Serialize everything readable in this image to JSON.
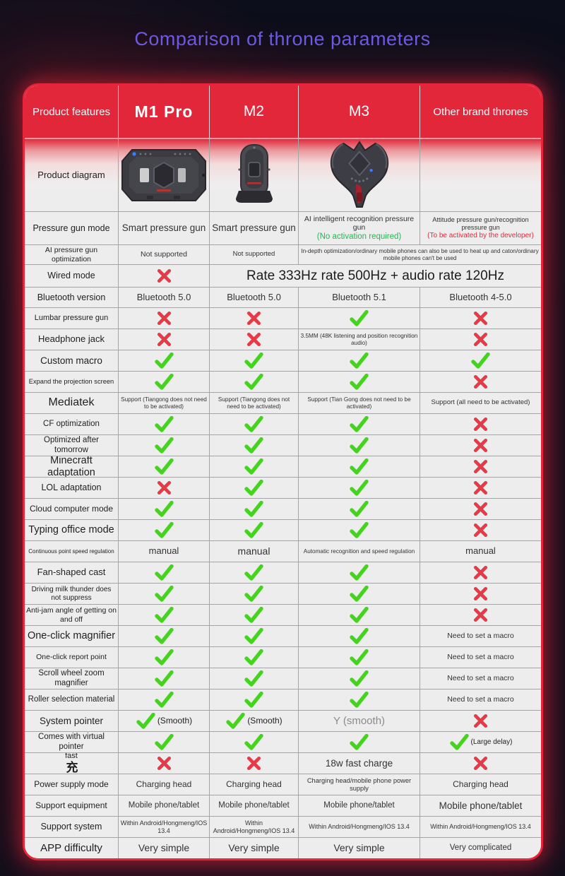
{
  "title": "Comparison of throne parameters",
  "colors": {
    "background": "#0c0e1b",
    "header_red": "#e3273a",
    "card_border_red": "#e6243a",
    "title_purple": "#6a5ce4",
    "check_green": "#45d41d",
    "cross_red": "#e73a46",
    "cell_bg": "#ededed",
    "ok_text_green": "#1fba50",
    "warn_text_red": "#e8283a"
  },
  "icons": {
    "check_icon": "green check mark",
    "cross_icon": "red cross mark",
    "device_images": [
      "m1-pro-device",
      "m2-device",
      "m3-device"
    ]
  },
  "table": {
    "headers": [
      "Product features",
      "M1 Pro",
      "M2",
      "M3",
      "Other brand thrones"
    ],
    "rows": [
      {
        "label": "Product diagram",
        "h": 102,
        "labelSize": 13,
        "diagram": true,
        "cells": [
          {
            "image": "m1-pro-device"
          },
          {
            "image": "m2-device"
          },
          {
            "image": "m3-device"
          },
          {}
        ]
      },
      {
        "label": "Pressure gun mode",
        "h": 47,
        "labelSize": 12.5,
        "cells": [
          {
            "text": "Smart pressure gun",
            "size": 13.5
          },
          {
            "text": "Smart pressure gun",
            "size": 13.5
          },
          {
            "text": "AI intelligent recognition pressure gun",
            "size": 10.5,
            "sub": "(No activation required)",
            "subColor": "#1fba50",
            "subSize": 11.5
          },
          {
            "text": "Attitude pressure gun/recognition pressure gun",
            "size": 9.3,
            "sub": "(To be activated by the developer)",
            "subColor": "#e8283a",
            "subSize": 10
          }
        ]
      },
      {
        "label": "AI pressure gun optimization",
        "h": 28,
        "labelSize": 10.5,
        "cells": [
          {
            "text": "Not supported",
            "size": 10.5
          },
          {
            "text": "Not supported",
            "size": 9.5
          },
          {
            "text": "In-depth optimization/ordinary mobile phones can also be used to heat up and caton/ordinary mobile phones can't be used",
            "colspan": 2,
            "size": 8.2
          }
        ]
      },
      {
        "label": "Wired mode",
        "h": 32,
        "labelSize": 12.5,
        "cells": [
          {
            "mark": "cross"
          },
          {
            "text": "Rate 333Hz rate 500Hz + audio rate 120Hz",
            "colspan": 3,
            "size": 19,
            "color": "#1c1c1c"
          }
        ]
      },
      {
        "label": "Bluetooth version",
        "h": 29,
        "labelSize": 12.5,
        "cells": [
          {
            "text": "Bluetooth 5.0",
            "size": 13
          },
          {
            "text": "Bluetooth 5.0",
            "size": 13
          },
          {
            "text": "Bluetooth 5.1",
            "size": 13
          },
          {
            "text": "Bluetooth 4-5.0",
            "size": 13
          }
        ]
      },
      {
        "label": "Lumbar pressure gun",
        "h": 30,
        "labelSize": 11,
        "cells": [
          {
            "mark": "cross"
          },
          {
            "mark": "cross"
          },
          {
            "mark": "check"
          },
          {
            "mark": "cross"
          }
        ]
      },
      {
        "label": "Headphone jack",
        "h": 30,
        "labelSize": 13,
        "cells": [
          {
            "mark": "cross"
          },
          {
            "mark": "cross"
          },
          {
            "text": "3.5MM (48K listening and position recognition audio)",
            "size": 8.2
          },
          {
            "mark": "cross"
          }
        ]
      },
      {
        "label": "Custom macro",
        "h": 30,
        "labelSize": 13.5,
        "cells": [
          {
            "mark": "check"
          },
          {
            "mark": "check"
          },
          {
            "mark": "check"
          },
          {
            "mark": "check"
          }
        ]
      },
      {
        "label": "Expand the projection screen",
        "h": 30,
        "labelSize": 9.3,
        "cells": [
          {
            "mark": "check"
          },
          {
            "mark": "check"
          },
          {
            "mark": "check"
          },
          {
            "mark": "cross"
          }
        ]
      },
      {
        "label": "Mediatek",
        "h": 30,
        "labelSize": 16,
        "cells": [
          {
            "text": "Support (Tiangong does not need to be activated)",
            "size": 8.2
          },
          {
            "text": "Support (Tiangong does not need to be activated)",
            "size": 8.2
          },
          {
            "text": "Support (Tian Gong does not need to be activated)",
            "size": 8.2
          },
          {
            "text": "Support (all need to be activated)",
            "size": 9.5
          }
        ]
      },
      {
        "label": "CF optimization",
        "h": 30,
        "labelSize": 11.5,
        "cells": [
          {
            "mark": "check"
          },
          {
            "mark": "check"
          },
          {
            "mark": "check"
          },
          {
            "mark": "cross"
          }
        ]
      },
      {
        "label": "Optimized after tomorrow",
        "h": 30,
        "labelSize": 11.5,
        "cells": [
          {
            "mark": "check"
          },
          {
            "mark": "check"
          },
          {
            "mark": "check"
          },
          {
            "mark": "cross"
          }
        ]
      },
      {
        "label": "Minecraft adaptation",
        "h": 30,
        "labelSize": 14.5,
        "cells": [
          {
            "mark": "check"
          },
          {
            "mark": "check"
          },
          {
            "mark": "check"
          },
          {
            "mark": "cross"
          }
        ]
      },
      {
        "label": "LOL adaptation",
        "h": 30,
        "labelSize": 12.5,
        "cells": [
          {
            "mark": "cross"
          },
          {
            "mark": "check"
          },
          {
            "mark": "check"
          },
          {
            "mark": "cross"
          }
        ]
      },
      {
        "label": "Cloud computer mode",
        "h": 30,
        "labelSize": 12,
        "cells": [
          {
            "mark": "check"
          },
          {
            "mark": "check"
          },
          {
            "mark": "check"
          },
          {
            "mark": "cross"
          }
        ]
      },
      {
        "label": "Typing office mode",
        "h": 30,
        "labelSize": 14.5,
        "cells": [
          {
            "mark": "check"
          },
          {
            "mark": "check"
          },
          {
            "mark": "check"
          },
          {
            "mark": "cross"
          }
        ]
      },
      {
        "label": "Continuous point speed regulation",
        "h": 30,
        "labelSize": 8,
        "cells": [
          {
            "text": "manual",
            "size": 13
          },
          {
            "text": "manual",
            "size": 14
          },
          {
            "text": "Automatic recognition and speed regulation",
            "size": 8.2
          },
          {
            "text": "manual",
            "size": 13
          }
        ]
      },
      {
        "label": "Fan-shaped cast",
        "h": 30,
        "labelSize": 13,
        "cells": [
          {
            "mark": "check"
          },
          {
            "mark": "check"
          },
          {
            "mark": "check"
          },
          {
            "mark": "cross"
          }
        ]
      },
      {
        "label": "Driving milk thunder does not suppress",
        "h": 30,
        "labelSize": 10,
        "cells": [
          {
            "mark": "check"
          },
          {
            "mark": "check"
          },
          {
            "mark": "check"
          },
          {
            "mark": "cross"
          }
        ]
      },
      {
        "label": "Anti-jam angle of getting on and off",
        "h": 30,
        "labelSize": 10.5,
        "cells": [
          {
            "mark": "check"
          },
          {
            "mark": "check"
          },
          {
            "mark": "check"
          },
          {
            "mark": "cross"
          }
        ]
      },
      {
        "label": "One-click magnifier",
        "h": 30,
        "labelSize": 14.5,
        "cells": [
          {
            "mark": "check"
          },
          {
            "mark": "check"
          },
          {
            "mark": "check"
          },
          {
            "text": "Need to set a macro",
            "size": 10.5
          }
        ]
      },
      {
        "label": "One-click report point",
        "h": 30,
        "labelSize": 10.5,
        "cells": [
          {
            "mark": "check"
          },
          {
            "mark": "check"
          },
          {
            "mark": "check"
          },
          {
            "text": "Need to set a macro",
            "size": 10.5
          }
        ]
      },
      {
        "label": "Scroll wheel zoom magnifier",
        "h": 30,
        "labelSize": 11.5,
        "cells": [
          {
            "mark": "check"
          },
          {
            "mark": "check"
          },
          {
            "mark": "check"
          },
          {
            "text": "Need to set a macro",
            "size": 10.5
          }
        ]
      },
      {
        "label": "Roller selection material",
        "h": 30,
        "labelSize": 11.5,
        "cells": [
          {
            "mark": "check"
          },
          {
            "mark": "check"
          },
          {
            "mark": "check"
          },
          {
            "text": "Need to set a macro",
            "size": 10.5
          }
        ]
      },
      {
        "label": "System pointer",
        "h": 30,
        "labelSize": 13.5,
        "cells": [
          {
            "mark": "check",
            "note": "(Smooth)",
            "noteSize": 12
          },
          {
            "mark": "check",
            "note": "(Smooth)",
            "noteSize": 12
          },
          {
            "text": "Y (smooth)",
            "size": 15,
            "color": "#8b8b8b"
          },
          {
            "mark": "cross"
          }
        ]
      },
      {
        "label": "Comes with virtual pointer",
        "h": 30,
        "labelSize": 11.5,
        "cells": [
          {
            "mark": "check"
          },
          {
            "mark": "check"
          },
          {
            "mark": "check"
          },
          {
            "mark": "check",
            "note": "(Large delay)",
            "noteSize": 10
          }
        ]
      },
      {
        "label": "fast",
        "labelCjk": "充",
        "h": 30,
        "labelSize": 11,
        "cells": [
          {
            "mark": "cross"
          },
          {
            "mark": "cross"
          },
          {
            "text": "18w fast charge",
            "size": 13.5
          },
          {
            "mark": "cross"
          }
        ]
      },
      {
        "label": "Power supply mode",
        "h": 30,
        "labelSize": 12,
        "cells": [
          {
            "text": "Charging head",
            "size": 12
          },
          {
            "text": "Charging head",
            "size": 12
          },
          {
            "text": "Charging head/mobile phone power supply",
            "size": 9.3
          },
          {
            "text": "Charging head",
            "size": 12
          }
        ]
      },
      {
        "label": "Support equipment",
        "h": 30,
        "labelSize": 12,
        "cells": [
          {
            "text": "Mobile phone/tablet",
            "size": 11.5
          },
          {
            "text": "Mobile phone/tablet",
            "size": 11.5
          },
          {
            "text": "Mobile phone/tablet",
            "size": 11.5
          },
          {
            "text": "Mobile phone/tablet",
            "size": 13.5
          }
        ]
      },
      {
        "label": "Support system",
        "h": 30,
        "labelSize": 12.5,
        "cells": [
          {
            "text": "Within Android/Hongmeng/IOS 13.4",
            "size": 9
          },
          {
            "text": "Within Android/Hongmeng/IOS 13.4",
            "size": 9
          },
          {
            "text": "Within Android/Hongmeng/IOS 13.4",
            "size": 9
          },
          {
            "text": "Within Android/Hongmeng/IOS 13.4",
            "size": 9
          }
        ]
      },
      {
        "label": "APP difficulty",
        "h": 30,
        "labelSize": 15,
        "cells": [
          {
            "text": "Very simple",
            "size": 14
          },
          {
            "text": "Very simple",
            "size": 14
          },
          {
            "text": "Very simple",
            "size": 14
          },
          {
            "text": "Very complicated",
            "size": 11.5
          }
        ]
      }
    ]
  }
}
